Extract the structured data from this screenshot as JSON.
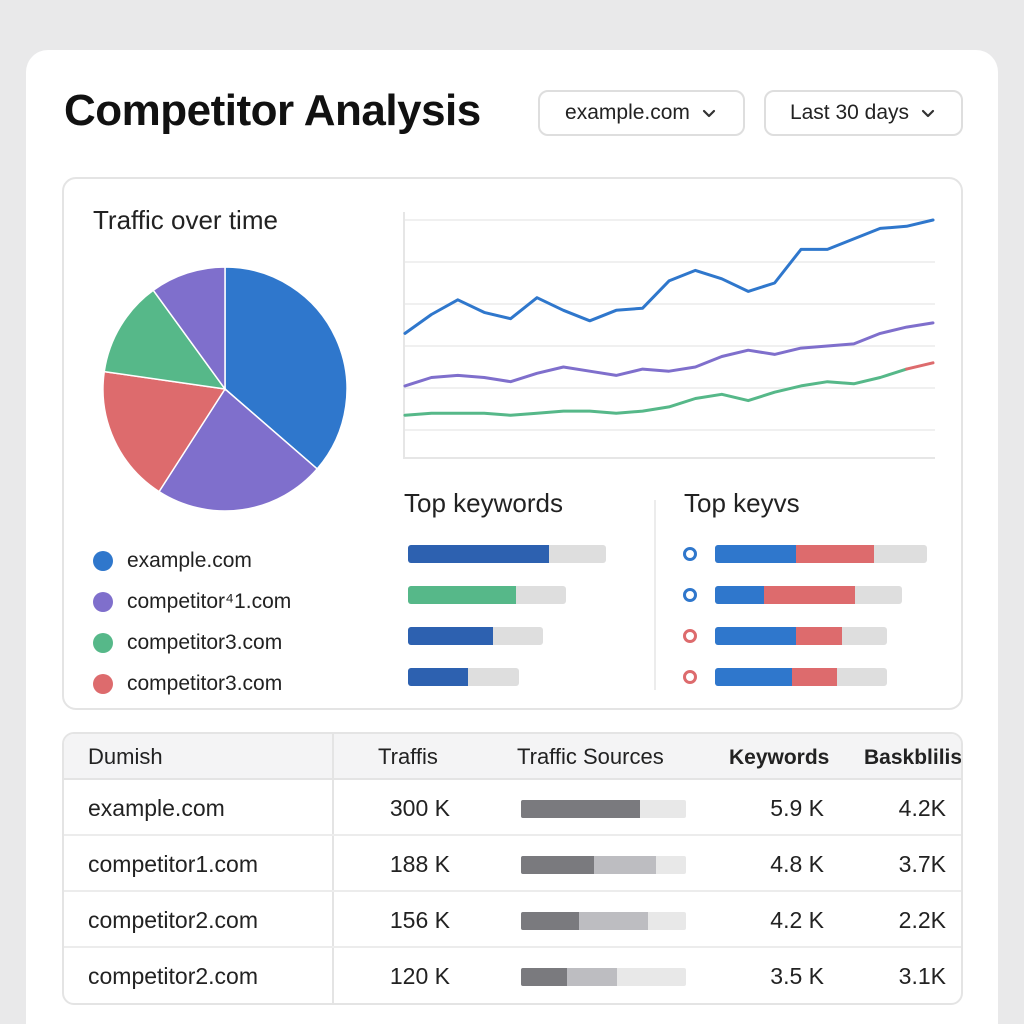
{
  "header": {
    "title": "Competitor Analysis",
    "domain_select": "example.com",
    "range_select": "Last 30 days"
  },
  "colors": {
    "blue": "#2f77cc",
    "purple": "#7f6fcc",
    "green": "#56b889",
    "red": "#dd6b6d",
    "track": "#dedede"
  },
  "overview": {
    "title": "Traffic over time",
    "legend": [
      {
        "label": "example.com",
        "color": "#2f77cc"
      },
      {
        "label": "competitor⁴1.com",
        "color": "#7f6fcc"
      },
      {
        "label": "competitor3.com",
        "color": "#56b889"
      },
      {
        "label": "competitor3.com",
        "color": "#dd6b6d"
      }
    ]
  },
  "chart_data": [
    {
      "type": "pie",
      "slices": [
        {
          "label": "example.com",
          "value": 40,
          "color": "#2f77cc"
        },
        {
          "label": "competitor⁴1.com",
          "value": 25,
          "color": "#7f6fcc"
        },
        {
          "label": "competitor3.com",
          "value": 20,
          "color": "#dd6b6d"
        },
        {
          "label": "competitor3.com",
          "value": 14,
          "color": "#56b889"
        },
        {
          "label": "competitor⁴1.com",
          "value": 11,
          "color": "#7f6fcc"
        }
      ]
    },
    {
      "type": "line",
      "x": [
        0,
        1,
        2,
        3,
        4,
        5,
        6,
        7,
        8,
        9,
        10,
        11,
        12,
        13,
        14,
        15,
        16,
        17,
        18,
        19,
        20
      ],
      "ylim": [
        0,
        100
      ],
      "grid": true,
      "series": [
        {
          "color": "#2f77cc",
          "values": [
            46,
            55,
            62,
            56,
            53,
            63,
            57,
            52,
            57,
            58,
            71,
            76,
            72,
            66,
            70,
            86,
            86,
            91,
            96,
            97,
            100
          ]
        },
        {
          "color": "#7f6fcc",
          "values": [
            21,
            25,
            26,
            25,
            23,
            27,
            30,
            28,
            26,
            29,
            28,
            30,
            35,
            38,
            36,
            39,
            40,
            41,
            46,
            49,
            51
          ]
        },
        {
          "color": "#56b889",
          "values": [
            7,
            8,
            8,
            8,
            7,
            8,
            9,
            9,
            8,
            9,
            11,
            15,
            17,
            14,
            18,
            21,
            23,
            22,
            25,
            29,
            32
          ]
        }
      ],
      "highlight_tail": {
        "from_index": 19,
        "color": "#dd6b6d"
      }
    }
  ],
  "top_keywords": {
    "title": "Top keywords",
    "bars": [
      {
        "share": 0.71,
        "color": "#2d61b0",
        "length": 1.0
      },
      {
        "share": 0.68,
        "color": "#56b889",
        "length": 0.8
      },
      {
        "share": 0.63,
        "color": "#2d61b0",
        "length": 0.68
      },
      {
        "share": 0.54,
        "color": "#2d61b0",
        "length": 0.56
      }
    ]
  },
  "top_keywords_2": {
    "title": "Top keyvs",
    "rows": [
      {
        "ring": "#2f77cc",
        "blue": 0.38,
        "red": 0.37,
        "length": 1.0
      },
      {
        "ring": "#2f77cc",
        "blue": 0.26,
        "red": 0.49,
        "length": 0.88
      },
      {
        "ring": "#dd6b6d",
        "blue": 0.47,
        "red": 0.27,
        "length": 0.81
      },
      {
        "ring": "#dd6b6d",
        "blue": 0.45,
        "red": 0.26,
        "length": 0.81
      }
    ]
  },
  "table": {
    "headers": {
      "domain": "Dumish",
      "traffic": "Traffis",
      "sources": "Traffic Sources",
      "keywords": "Keywords",
      "backlinks": "Baskblilis"
    },
    "rows": [
      {
        "domain": "example.com",
        "traffic": "300 K",
        "keywords": "5.9 K",
        "backlinks": "4.2K",
        "dark": 0.72,
        "mid": 0.0
      },
      {
        "domain": "competitor1.com",
        "traffic": "188 K",
        "keywords": "4.8 K",
        "backlinks": "3.7K",
        "dark": 0.44,
        "mid": 0.38
      },
      {
        "domain": "competitor2.com",
        "traffic": "156 K",
        "keywords": "4.2 K",
        "backlinks": "2.2K",
        "dark": 0.35,
        "mid": 0.42
      },
      {
        "domain": "competitor2.com",
        "traffic": "120 K",
        "keywords": "3.5 K",
        "backlinks": "3.1K",
        "dark": 0.28,
        "mid": 0.3
      }
    ]
  }
}
